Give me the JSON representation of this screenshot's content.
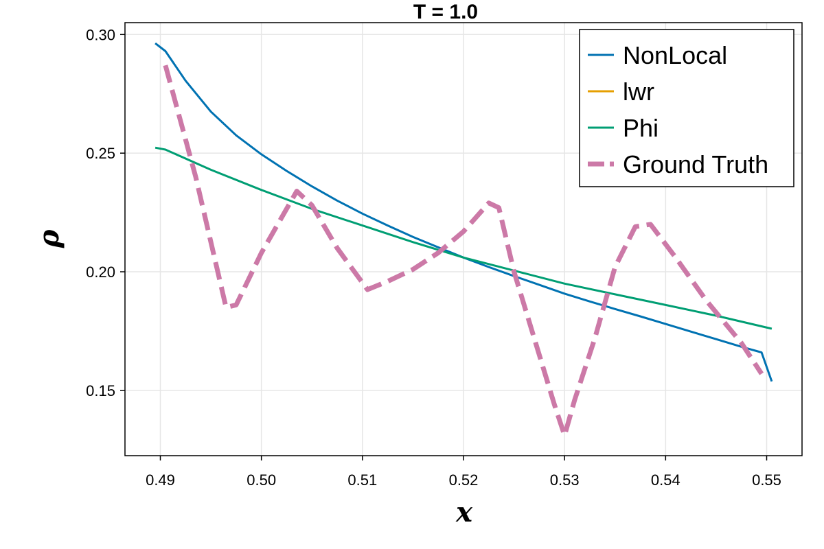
{
  "chart_data": {
    "type": "line",
    "title": "T = 1.0",
    "xlabel": "x",
    "ylabel": "ρ",
    "xlim": [
      0.4865,
      0.5535
    ],
    "ylim": [
      0.1225,
      0.305
    ],
    "xticks": [
      0.49,
      0.5,
      0.51,
      0.52,
      0.53,
      0.54,
      0.55
    ],
    "xtick_labels": [
      "0.49",
      "0.50",
      "0.51",
      "0.52",
      "0.53",
      "0.54",
      "0.55"
    ],
    "yticks": [
      0.15,
      0.2,
      0.25,
      0.3
    ],
    "ytick_labels": [
      "0.15",
      "0.20",
      "0.25",
      "0.30"
    ],
    "grid": true,
    "legend_position": "top-right",
    "series": [
      {
        "name": "NonLocal",
        "color": "#0072b2",
        "style": "solid",
        "x": [
          0.4895,
          0.4905,
          0.4925,
          0.495,
          0.4975,
          0.5,
          0.5025,
          0.505,
          0.5075,
          0.51,
          0.5125,
          0.515,
          0.5175,
          0.52,
          0.5225,
          0.525,
          0.5275,
          0.53,
          0.5325,
          0.535,
          0.5375,
          0.54,
          0.5425,
          0.545,
          0.5475,
          0.549,
          0.5495,
          0.5505
        ],
        "y": [
          0.2963,
          0.293,
          0.2805,
          0.2675,
          0.2575,
          0.2495,
          0.2425,
          0.236,
          0.23,
          0.2245,
          0.2195,
          0.2147,
          0.2103,
          0.206,
          0.202,
          0.1982,
          0.1945,
          0.1908,
          0.1875,
          0.1843,
          0.1812,
          0.178,
          0.1748,
          0.1716,
          0.1684,
          0.1666,
          0.166,
          0.1538
        ]
      },
      {
        "name": "lwr",
        "color": "#e69f00",
        "style": "solid",
        "x": [],
        "y": []
      },
      {
        "name": "Phi",
        "color": "#009e73",
        "style": "solid",
        "x": [
          0.4895,
          0.4905,
          0.495,
          0.5,
          0.505,
          0.51,
          0.515,
          0.52,
          0.525,
          0.53,
          0.535,
          0.54,
          0.545,
          0.5505
        ],
        "y": [
          0.2523,
          0.2515,
          0.243,
          0.2345,
          0.2265,
          0.2195,
          0.2125,
          0.206,
          0.2005,
          0.195,
          0.1905,
          0.186,
          0.1815,
          0.176
        ]
      },
      {
        "name": "Ground Truth",
        "color": "#cc79a7",
        "style": "dashed",
        "x": [
          0.4905,
          0.4935,
          0.4965,
          0.4975,
          0.5,
          0.5035,
          0.505,
          0.5075,
          0.5105,
          0.5125,
          0.515,
          0.5175,
          0.52,
          0.5225,
          0.5235,
          0.525,
          0.527,
          0.529,
          0.53,
          0.531,
          0.533,
          0.535,
          0.537,
          0.5385,
          0.541,
          0.544,
          0.5475,
          0.5495
        ],
        "y": [
          0.287,
          0.24,
          0.185,
          0.186,
          0.208,
          0.234,
          0.228,
          0.21,
          0.1925,
          0.196,
          0.201,
          0.208,
          0.217,
          0.229,
          0.227,
          0.2,
          0.172,
          0.144,
          0.131,
          0.146,
          0.172,
          0.202,
          0.219,
          0.22,
          0.206,
          0.188,
          0.17,
          0.157
        ]
      }
    ]
  }
}
